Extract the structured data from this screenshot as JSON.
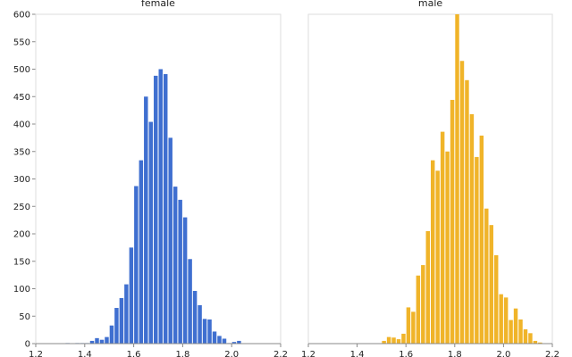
{
  "chart_data": {
    "type": "bar",
    "title": "",
    "xlabel": "",
    "ylabel": "",
    "ylim": [
      0,
      600
    ],
    "yticks": [
      0,
      50,
      100,
      150,
      200,
      250,
      300,
      350,
      400,
      450,
      500,
      550,
      600
    ],
    "xlim": [
      1.2,
      2.2
    ],
    "xticks": [
      "1.2",
      "1.4",
      "1.6",
      "1.8",
      "2.0",
      "2.2"
    ],
    "bin_width": 0.02,
    "panels": [
      {
        "name": "female",
        "color": "#3f6fd0",
        "bins": [
          {
            "x0": 1.32,
            "value": 1
          },
          {
            "x0": 1.36,
            "value": 1
          },
          {
            "x0": 1.38,
            "value": 1
          },
          {
            "x0": 1.4,
            "value": 1
          },
          {
            "x0": 1.42,
            "value": 5
          },
          {
            "x0": 1.44,
            "value": 10
          },
          {
            "x0": 1.46,
            "value": 7
          },
          {
            "x0": 1.48,
            "value": 12
          },
          {
            "x0": 1.5,
            "value": 33
          },
          {
            "x0": 1.52,
            "value": 65
          },
          {
            "x0": 1.54,
            "value": 83
          },
          {
            "x0": 1.56,
            "value": 108
          },
          {
            "x0": 1.58,
            "value": 175
          },
          {
            "x0": 1.6,
            "value": 287
          },
          {
            "x0": 1.62,
            "value": 334
          },
          {
            "x0": 1.64,
            "value": 450
          },
          {
            "x0": 1.66,
            "value": 404
          },
          {
            "x0": 1.68,
            "value": 488
          },
          {
            "x0": 1.7,
            "value": 500
          },
          {
            "x0": 1.72,
            "value": 491
          },
          {
            "x0": 1.74,
            "value": 375
          },
          {
            "x0": 1.76,
            "value": 286
          },
          {
            "x0": 1.78,
            "value": 262
          },
          {
            "x0": 1.8,
            "value": 230
          },
          {
            "x0": 1.82,
            "value": 154
          },
          {
            "x0": 1.84,
            "value": 96
          },
          {
            "x0": 1.86,
            "value": 70
          },
          {
            "x0": 1.88,
            "value": 45
          },
          {
            "x0": 1.9,
            "value": 44
          },
          {
            "x0": 1.92,
            "value": 22
          },
          {
            "x0": 1.94,
            "value": 14
          },
          {
            "x0": 1.96,
            "value": 9
          },
          {
            "x0": 1.98,
            "value": 1
          },
          {
            "x0": 2.0,
            "value": 3
          },
          {
            "x0": 2.02,
            "value": 5
          }
        ]
      },
      {
        "name": "male",
        "color": "#f0b429",
        "bins": [
          {
            "x0": 1.5,
            "value": 5
          },
          {
            "x0": 1.52,
            "value": 12
          },
          {
            "x0": 1.54,
            "value": 11
          },
          {
            "x0": 1.56,
            "value": 8
          },
          {
            "x0": 1.58,
            "value": 18
          },
          {
            "x0": 1.6,
            "value": 66
          },
          {
            "x0": 1.62,
            "value": 58
          },
          {
            "x0": 1.64,
            "value": 124
          },
          {
            "x0": 1.66,
            "value": 143
          },
          {
            "x0": 1.68,
            "value": 205
          },
          {
            "x0": 1.7,
            "value": 334
          },
          {
            "x0": 1.72,
            "value": 315
          },
          {
            "x0": 1.74,
            "value": 386
          },
          {
            "x0": 1.76,
            "value": 350
          },
          {
            "x0": 1.78,
            "value": 444
          },
          {
            "x0": 1.8,
            "value": 600
          },
          {
            "x0": 1.82,
            "value": 515
          },
          {
            "x0": 1.84,
            "value": 480
          },
          {
            "x0": 1.86,
            "value": 418
          },
          {
            "x0": 1.88,
            "value": 340
          },
          {
            "x0": 1.9,
            "value": 379
          },
          {
            "x0": 1.92,
            "value": 246
          },
          {
            "x0": 1.94,
            "value": 216
          },
          {
            "x0": 1.96,
            "value": 161
          },
          {
            "x0": 1.98,
            "value": 90
          },
          {
            "x0": 2.0,
            "value": 84
          },
          {
            "x0": 2.02,
            "value": 43
          },
          {
            "x0": 2.04,
            "value": 64
          },
          {
            "x0": 2.06,
            "value": 44
          },
          {
            "x0": 2.08,
            "value": 26
          },
          {
            "x0": 2.1,
            "value": 19
          },
          {
            "x0": 2.12,
            "value": 5
          },
          {
            "x0": 2.14,
            "value": 2
          }
        ]
      }
    ]
  }
}
